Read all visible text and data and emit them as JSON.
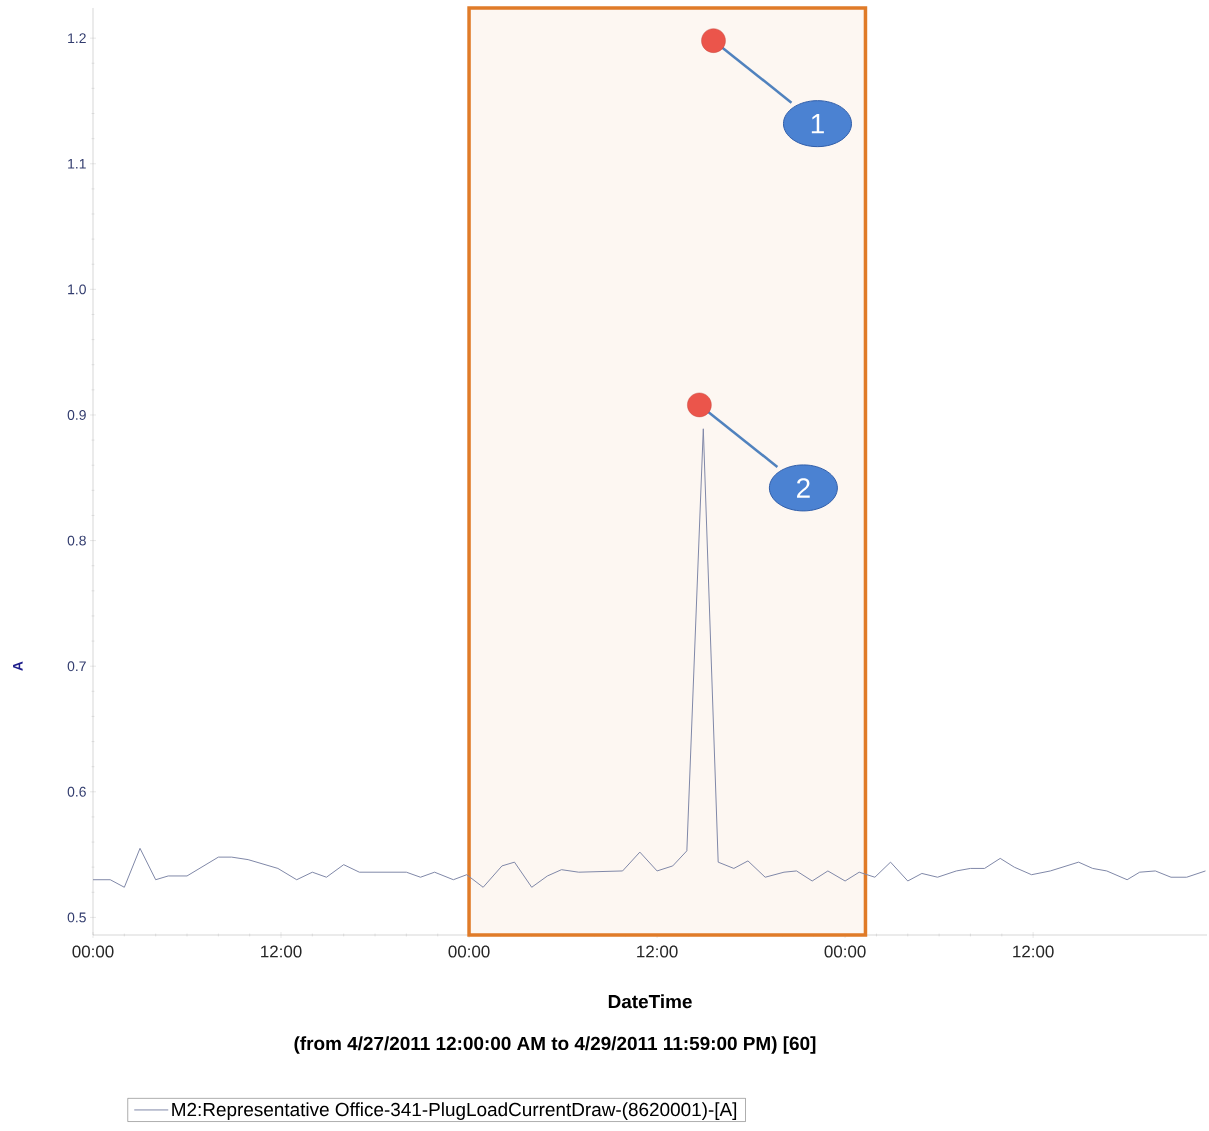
{
  "chart_data": {
    "type": "line",
    "xlabel": "DateTime",
    "ylabel": "A",
    "annotations": [
      "(from 4/27/2011 12:00:00 AM to 4/29/2011 11:59:00 PM) [60]",
      {
        "text": "1",
        "x": "2011-04-28T15:36",
        "y": 1.198
      },
      {
        "text": "2",
        "x": "2011-04-28T14:42",
        "y": 0.908
      }
    ],
    "xlim": [
      "2011-04-27T00:00",
      "2011-04-29T23:06"
    ],
    "ylim": [
      0.486,
      1.224
    ],
    "xticks": [
      {
        "value": "2011-04-27T00:00",
        "label": "00:00"
      },
      {
        "value": "2011-04-27T12:00",
        "label": "12:00"
      },
      {
        "value": "2011-04-28T00:00",
        "label": "00:00"
      },
      {
        "value": "2011-04-28T12:00",
        "label": "12:00"
      },
      {
        "value": "2011-04-29T00:00",
        "label": "00:00"
      },
      {
        "value": "2011-04-29T12:00",
        "label": "12:00"
      }
    ],
    "yticks": [
      {
        "value": 0.5,
        "label": "0.5"
      },
      {
        "value": 0.6,
        "label": "0.6"
      },
      {
        "value": 0.7,
        "label": "0.7"
      },
      {
        "value": 0.8,
        "label": "0.8"
      },
      {
        "value": 0.9,
        "label": "0.9"
      },
      {
        "value": 1.0,
        "label": "1.0"
      },
      {
        "value": 1.1,
        "label": "1.1"
      },
      {
        "value": 1.2,
        "label": "1.2"
      }
    ],
    "grid": false,
    "legend": "bottom",
    "marker": "none",
    "line_style": "solid",
    "bands": [
      {
        "axis": "x",
        "from": "2011-04-28T00:00",
        "to": "2011-04-29T01:18",
        "color": "#e07b28"
      }
    ],
    "series": [
      {
        "name": "M2:Representative Office-341-PlugLoadCurrentDraw-(8620001)-[A]",
        "color": "#8088a8",
        "x": [
          "2011-04-27T00:00",
          "2011-04-27T01:06",
          "2011-04-27T02:00",
          "2011-04-27T03:00",
          "2011-04-27T04:00",
          "2011-04-27T04:48",
          "2011-04-27T06:00",
          "2011-04-27T08:00",
          "2011-04-27T08:51",
          "2011-04-27T09:54",
          "2011-04-27T11:48",
          "2011-04-27T13:00",
          "2011-04-27T14:00",
          "2011-04-27T14:54",
          "2011-04-27T16:00",
          "2011-04-27T17:00",
          "2011-04-27T20:00",
          "2011-04-27T20:54",
          "2011-04-27T21:48",
          "2011-04-27T23:00",
          "2011-04-27T23:51",
          "2011-04-28T00:54",
          "2011-04-28T02:06",
          "2011-04-28T02:54",
          "2011-04-28T04:00",
          "2011-04-28T05:00",
          "2011-04-28T05:54",
          "2011-04-28T07:00",
          "2011-04-28T09:48",
          "2011-04-28T10:54",
          "2011-04-28T12:00",
          "2011-04-28T13:00",
          "2011-04-28T13:54",
          "2011-04-28T14:57",
          "2011-04-28T15:54",
          "2011-04-28T16:54",
          "2011-04-28T17:48",
          "2011-04-28T18:54",
          "2011-04-28T20:06",
          "2011-04-28T20:54",
          "2011-04-28T21:54",
          "2011-04-28T22:54",
          "2011-04-29T00:00",
          "2011-04-29T00:54",
          "2011-04-29T01:54",
          "2011-04-29T02:54",
          "2011-04-29T04:00",
          "2011-04-29T04:54",
          "2011-04-29T05:54",
          "2011-04-29T07:06",
          "2011-04-29T08:00",
          "2011-04-29T08:54",
          "2011-04-29T09:54",
          "2011-04-29T10:48",
          "2011-04-29T11:54",
          "2011-04-29T13:06",
          "2011-04-29T14:54",
          "2011-04-29T15:48",
          "2011-04-29T16:42",
          "2011-04-29T18:00",
          "2011-04-29T18:48",
          "2011-04-29T19:48",
          "2011-04-29T20:48",
          "2011-04-29T21:48",
          "2011-04-29T23:00"
        ],
        "values": [
          0.53,
          0.53,
          0.524,
          0.555,
          0.53,
          0.533,
          0.533,
          0.548,
          0.548,
          0.546,
          0.539,
          0.53,
          0.536,
          0.532,
          0.542,
          0.536,
          0.536,
          0.532,
          0.536,
          0.53,
          0.534,
          0.524,
          0.541,
          0.544,
          0.524,
          0.533,
          0.538,
          0.536,
          0.537,
          0.552,
          0.537,
          0.541,
          0.553,
          0.889,
          0.544,
          0.539,
          0.545,
          0.532,
          0.536,
          0.537,
          0.529,
          0.537,
          0.529,
          0.536,
          0.532,
          0.544,
          0.529,
          0.535,
          0.532,
          0.537,
          0.539,
          0.539,
          0.547,
          0.54,
          0.534,
          0.537,
          0.544,
          0.539,
          0.537,
          0.53,
          0.536,
          0.537,
          0.532,
          0.532,
          0.537
        ]
      }
    ]
  }
}
